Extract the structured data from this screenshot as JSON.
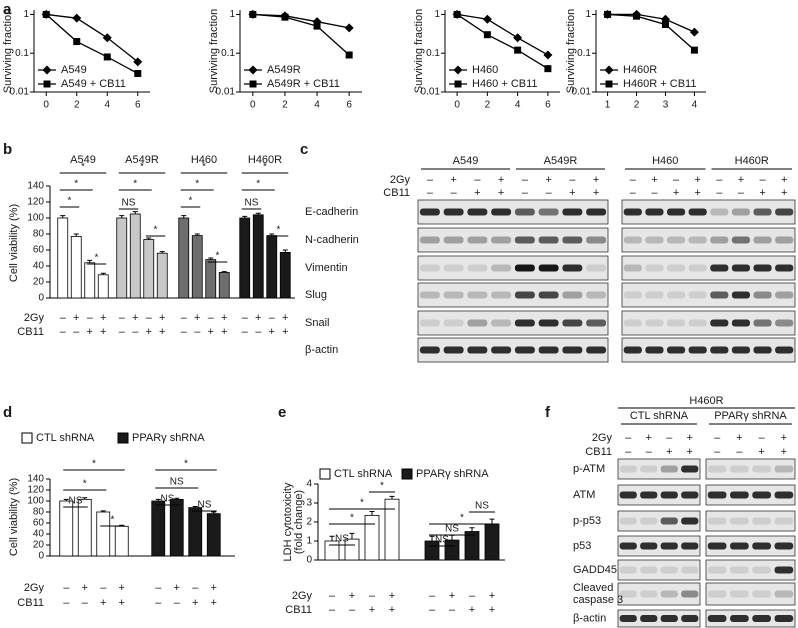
{
  "panel_labels": [
    "a",
    "b",
    "c",
    "d",
    "e",
    "f"
  ],
  "chart_data": [
    {
      "type": "line",
      "log_y": true,
      "x": [
        0,
        2,
        4,
        6
      ],
      "xlim": [
        -0.8,
        6.8
      ],
      "xticks": [
        0,
        2,
        4,
        6
      ],
      "ylim": [
        0.01,
        1.3
      ],
      "yticks": [
        0.01,
        0.1,
        1
      ],
      "ylabel": "Surviving fraction",
      "legend": "lower left",
      "series": [
        {
          "name": "A549",
          "color": "#000000",
          "marker": "diamond",
          "values": [
            1,
            0.8,
            0.25,
            0.06
          ]
        },
        {
          "name": "A549 + CB11",
          "color": "#000000",
          "marker": "square",
          "values": [
            1,
            0.2,
            0.08,
            0.03
          ]
        }
      ]
    },
    {
      "type": "line",
      "log_y": true,
      "x": [
        0,
        2,
        4,
        6
      ],
      "xlim": [
        -0.8,
        6.8
      ],
      "xticks": [
        0,
        2,
        4,
        6
      ],
      "ylim": [
        0.01,
        1.3
      ],
      "yticks": [
        0.01,
        0.1,
        1
      ],
      "ylabel": "Surviving fraction",
      "legend": "lower left",
      "series": [
        {
          "name": "A549R",
          "color": "#000000",
          "marker": "diamond",
          "values": [
            1,
            0.92,
            0.65,
            0.45
          ]
        },
        {
          "name": "A549R + CB11",
          "color": "#000000",
          "marker": "square",
          "values": [
            1,
            0.85,
            0.5,
            0.09
          ]
        }
      ]
    },
    {
      "type": "line",
      "log_y": true,
      "x": [
        0,
        2,
        4,
        6
      ],
      "xlim": [
        -0.8,
        6.8
      ],
      "xticks": [
        0,
        2,
        4,
        6
      ],
      "ylim": [
        0.01,
        1.3
      ],
      "yticks": [
        0.01,
        0.1,
        1
      ],
      "ylabel": "Surviving fraction",
      "legend": "lower left",
      "series": [
        {
          "name": "H460",
          "color": "#000000",
          "marker": "diamond",
          "values": [
            1,
            0.75,
            0.25,
            0.09
          ]
        },
        {
          "name": "H460 + CB11",
          "color": "#000000",
          "marker": "square",
          "values": [
            1,
            0.3,
            0.12,
            0.04
          ]
        }
      ]
    },
    {
      "type": "line",
      "log_y": true,
      "x": [
        1,
        2,
        3,
        4
      ],
      "xlim": [
        0.6,
        4.4
      ],
      "xticks": [
        1,
        2,
        3,
        4
      ],
      "ylim": [
        0.01,
        1.3
      ],
      "yticks": [
        0.01,
        0.1,
        1
      ],
      "ylabel": "Surviving fraction",
      "legend": "lower left",
      "series": [
        {
          "name": "H460R",
          "color": "#000000",
          "marker": "diamond",
          "values": [
            1,
            1,
            0.75,
            0.35
          ]
        },
        {
          "name": "H460R + CB11",
          "color": "#000000",
          "marker": "square",
          "values": [
            1,
            0.9,
            0.55,
            0.12
          ]
        }
      ]
    },
    {
      "type": "bar",
      "ylabel": "Cell viability (%)",
      "ylim": [
        0,
        140
      ],
      "yticks": [
        0,
        20,
        40,
        60,
        80,
        100,
        120,
        140
      ],
      "legend": false,
      "conditions": [
        {
          "label": "2Gy",
          "signs": [
            "–",
            "+",
            "–",
            "+"
          ]
        },
        {
          "label": "CB11",
          "signs": [
            "–",
            "–",
            "+",
            "+"
          ]
        }
      ],
      "series": [
        {
          "name": "A549",
          "color": "#ffffff",
          "values": [
            100,
            77,
            44,
            29
          ],
          "errors": [
            3,
            3,
            3,
            2
          ],
          "annotations": [
            "*",
            "*",
            "*",
            "*"
          ]
        },
        {
          "name": "A549R",
          "color": "#c8c8c8",
          "values": [
            100,
            105,
            73,
            56
          ],
          "errors": [
            3,
            3,
            2,
            2
          ],
          "annotations": [
            "*",
            "*",
            "NS",
            "*"
          ]
        },
        {
          "name": "H460",
          "color": "#6e6e6e",
          "values": [
            100,
            78,
            48,
            32
          ],
          "errors": [
            3,
            2,
            2,
            1
          ],
          "annotations": [
            "*",
            "*",
            "*",
            "*"
          ]
        },
        {
          "name": "H460R",
          "color": "#1a1a1a",
          "values": [
            100,
            104,
            78,
            57
          ],
          "errors": [
            2,
            2,
            2,
            3
          ],
          "annotations": [
            "*",
            "*",
            "NS",
            "*"
          ]
        }
      ]
    },
    {
      "type": "bar",
      "ylabel": "Cell viability (%)",
      "ylim": [
        0,
        140
      ],
      "yticks": [
        0,
        20,
        40,
        60,
        80,
        100,
        120,
        140
      ],
      "legend": true,
      "conditions": [
        {
          "label": "2Gy",
          "signs": [
            "–",
            "+",
            "–",
            "+"
          ]
        },
        {
          "label": "CB11",
          "signs": [
            "–",
            "–",
            "+",
            "+"
          ]
        }
      ],
      "series": [
        {
          "name": "CTL shRNA",
          "color": "#ffffff",
          "values": [
            100,
            103,
            80,
            54
          ],
          "errors": [
            3,
            3,
            2,
            2
          ],
          "annotations": [
            "*",
            "*",
            "NS",
            "*"
          ]
        },
        {
          "name": "PPARγ shRNA",
          "color": "#1a1a1a",
          "values": [
            100,
            103,
            88,
            77
          ],
          "errors": [
            3,
            2,
            2,
            3
          ],
          "annotations": [
            "*",
            "NS",
            "NS",
            "NS"
          ]
        }
      ]
    },
    {
      "type": "bar",
      "ylabel": [
        "LDH cytotoxicity",
        "(fold change)"
      ],
      "ylim": [
        0,
        4
      ],
      "yticks": [
        0,
        1,
        2,
        3,
        4
      ],
      "legend": true,
      "conditions": [
        {
          "label": "2Gy",
          "signs": [
            "–",
            "+",
            "–",
            "+"
          ]
        },
        {
          "label": "CB11",
          "signs": [
            "–",
            "–",
            "+",
            "+"
          ]
        }
      ],
      "series": [
        {
          "name": "CTL shRNA",
          "color": "#ffffff",
          "values": [
            1,
            1.1,
            2.35,
            3.2
          ],
          "errors": [
            0.25,
            0.3,
            0.2,
            0.15
          ],
          "annotations": [
            "*",
            "*",
            "*",
            "NS"
          ]
        },
        {
          "name": "PPARγ shRNA",
          "color": "#1a1a1a",
          "values": [
            1,
            1.05,
            1.5,
            1.9
          ],
          "errors": [
            0.25,
            0.25,
            0.2,
            0.25
          ],
          "annotations": [
            "NS",
            "*",
            "NS",
            "NS"
          ]
        }
      ]
    }
  ],
  "blots": [
    {
      "groups": [
        "A549",
        "A549R",
        "H460",
        "H460R"
      ],
      "conditions": [
        {
          "label": "2Gy",
          "signs": [
            "–",
            "+",
            "–",
            "+"
          ]
        },
        {
          "label": "CB11",
          "signs": [
            "–",
            "–",
            "+",
            "+"
          ]
        }
      ],
      "rows": [
        "E-cadherin",
        "N-cadherin",
        "Vimentin",
        "Slug",
        "Snail",
        "β-actin"
      ]
    },
    {
      "title": "H460R",
      "groups": [
        "CTL shRNA",
        "PPARγ shRNA"
      ],
      "conditions": [
        {
          "label": "2Gy",
          "signs": [
            "–",
            "+",
            "–",
            "+"
          ]
        },
        {
          "label": "CB11",
          "signs": [
            "–",
            "–",
            "+",
            "+"
          ]
        }
      ],
      "rows": [
        "p-ATM",
        "ATM",
        "p-p53",
        "p53",
        "GADD45",
        [
          "Cleaved",
          "caspase 3"
        ],
        "β-actin"
      ]
    }
  ]
}
